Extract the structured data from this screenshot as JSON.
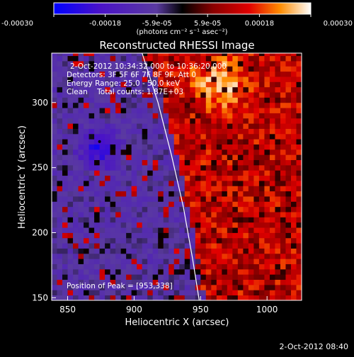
{
  "chart_data": {
    "type": "heatmap",
    "title": "Reconstructed RHESSI Image",
    "xlabel": "Heliocentric X (arcsec)",
    "ylabel": "Heliocentric Y (arcsec)",
    "xlim": [
      838,
      1026
    ],
    "ylim": [
      148,
      338
    ],
    "x_ticks": [
      850,
      900,
      950,
      1000
    ],
    "y_ticks": [
      150,
      200,
      250,
      300
    ],
    "colorbar": {
      "range": [
        -0.0003,
        0.0003
      ],
      "tick_labels": [
        "-0.00030",
        "-0.00018",
        "-5.9e-05",
        "5.9e-05",
        "0.00018",
        "0.00030"
      ],
      "label": "(photons cm⁻² s⁻¹ asec⁻²)"
    },
    "annotations": [
      "2-Oct-2012 10:34:32.000 to 10:36:20.000",
      "Detectors: 3F 5F 6F 7F 8F 9F, Att 0",
      "Energy Range: 25.0 - 50.0 keV",
      "Clean    Total counts: 1.87E+03"
    ],
    "peak_label": "Position of Peak = [953,338]",
    "peak_position": [
      953,
      338
    ],
    "negative_min_position": [
      874,
      270
    ],
    "limb_arc": [
      [
        906,
        338
      ],
      [
        918,
        300
      ],
      [
        928,
        260
      ],
      [
        937,
        220
      ],
      [
        944,
        180
      ],
      [
        949,
        148
      ]
    ]
  },
  "footer": {
    "date": "2-Oct-2012 08:40"
  }
}
